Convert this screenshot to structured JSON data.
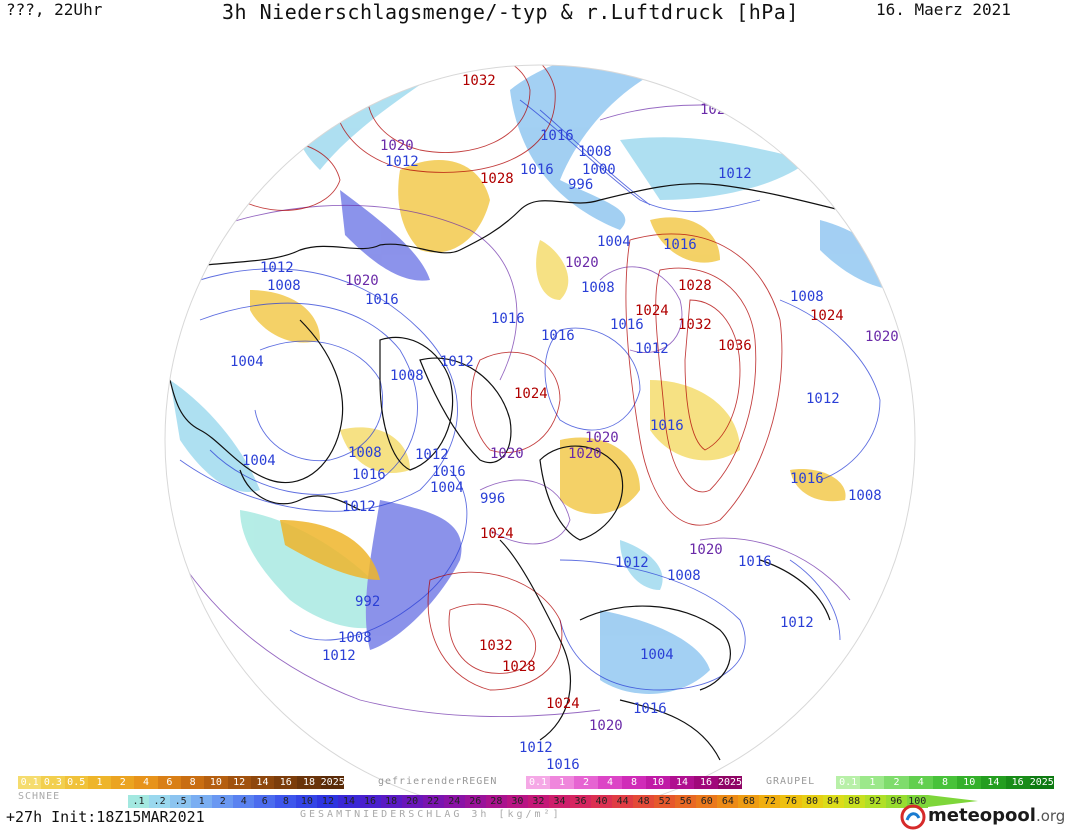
{
  "header": {
    "left": "???, 22Uhr",
    "title": "3h Niederschlagsmenge/-typ & r.Luftdruck [hPa]",
    "date": "16. Maerz 2021"
  },
  "map": {
    "colors": {
      "high": "#b00000",
      "low_blue": "#2a3fd6",
      "mid_purple": "#6a2aa8",
      "coast": "#111111",
      "rain_blue": "#6f78e6",
      "snow": "#f2c94c"
    },
    "pressure_labels": [
      {
        "text": "1032",
        "kind": "high"
      },
      {
        "text": "1020",
        "kind": "mid"
      },
      {
        "text": "1016",
        "kind": "low"
      },
      {
        "text": "1008",
        "kind": "low"
      },
      {
        "text": "1000",
        "kind": "low"
      },
      {
        "text": "996",
        "kind": "low"
      },
      {
        "text": "1012",
        "kind": "low"
      },
      {
        "text": "1016",
        "kind": "low"
      },
      {
        "text": "1020",
        "kind": "mid"
      },
      {
        "text": "1012",
        "kind": "low"
      },
      {
        "text": "1028",
        "kind": "high"
      },
      {
        "text": "1004",
        "kind": "low"
      },
      {
        "text": "1016",
        "kind": "low"
      },
      {
        "text": "1020",
        "kind": "mid"
      },
      {
        "text": "1012",
        "kind": "low"
      },
      {
        "text": "1008",
        "kind": "low"
      },
      {
        "text": "1020",
        "kind": "mid"
      },
      {
        "text": "1016",
        "kind": "low"
      },
      {
        "text": "1008",
        "kind": "low"
      },
      {
        "text": "1028",
        "kind": "high"
      },
      {
        "text": "1024",
        "kind": "high"
      },
      {
        "text": "1016",
        "kind": "low"
      },
      {
        "text": "1008",
        "kind": "low"
      },
      {
        "text": "1024",
        "kind": "high"
      },
      {
        "text": "1016",
        "kind": "low"
      },
      {
        "text": "1032",
        "kind": "high"
      },
      {
        "text": "1016",
        "kind": "low"
      },
      {
        "text": "1012",
        "kind": "low"
      },
      {
        "text": "1020",
        "kind": "mid"
      },
      {
        "text": "1036",
        "kind": "high"
      },
      {
        "text": "1004",
        "kind": "low"
      },
      {
        "text": "1012",
        "kind": "low"
      },
      {
        "text": "1008",
        "kind": "low"
      },
      {
        "text": "1024",
        "kind": "high"
      },
      {
        "text": "1012",
        "kind": "low"
      },
      {
        "text": "1020",
        "kind": "mid"
      },
      {
        "text": "1016",
        "kind": "low"
      },
      {
        "text": "1004",
        "kind": "low"
      },
      {
        "text": "1008",
        "kind": "low"
      },
      {
        "text": "1016",
        "kind": "low"
      },
      {
        "text": "1012",
        "kind": "low"
      },
      {
        "text": "1016",
        "kind": "low"
      },
      {
        "text": "1004",
        "kind": "low"
      },
      {
        "text": "996",
        "kind": "low"
      },
      {
        "text": "1020",
        "kind": "mid"
      },
      {
        "text": "1016",
        "kind": "low"
      },
      {
        "text": "1020",
        "kind": "mid"
      },
      {
        "text": "1008",
        "kind": "low"
      },
      {
        "text": "1012",
        "kind": "low"
      },
      {
        "text": "1024",
        "kind": "high"
      },
      {
        "text": "1020",
        "kind": "mid"
      },
      {
        "text": "1012",
        "kind": "low"
      },
      {
        "text": "1008",
        "kind": "low"
      },
      {
        "text": "1016",
        "kind": "low"
      },
      {
        "text": "992",
        "kind": "low"
      },
      {
        "text": "1008",
        "kind": "low"
      },
      {
        "text": "1012",
        "kind": "low"
      },
      {
        "text": "1032",
        "kind": "high"
      },
      {
        "text": "1028",
        "kind": "high"
      },
      {
        "text": "1004",
        "kind": "low"
      },
      {
        "text": "1024",
        "kind": "high"
      },
      {
        "text": "1016",
        "kind": "low"
      },
      {
        "text": "1020",
        "kind": "mid"
      },
      {
        "text": "1012",
        "kind": "low"
      },
      {
        "text": "1016",
        "kind": "low"
      },
      {
        "text": "1012",
        "kind": "low"
      }
    ]
  },
  "legend": {
    "snow_label": "SCHNEE",
    "snow_values": [
      "0.1",
      "0.3",
      "0.5",
      "1",
      "2",
      "4",
      "6",
      "8",
      "10",
      "12",
      "14",
      "16",
      "18",
      "2025+"
    ],
    "snow_colors": [
      "#f5dc6e",
      "#f2cf4e",
      "#f0c23a",
      "#eeb52a",
      "#eba421",
      "#e7931b",
      "#d97f16",
      "#c96e12",
      "#b55f10",
      "#a1520e",
      "#8e470d",
      "#7c3d0b",
      "#6a340a",
      "#5a2b08"
    ],
    "freezing_label": "gefrierenderREGEN",
    "freezing_values": [
      "0.1",
      "1",
      "2",
      "4",
      "8",
      "10",
      "14",
      "16",
      "2025+"
    ],
    "freezing_colors": [
      "#f5a8e6",
      "#ef86dc",
      "#e664d2",
      "#dc45c6",
      "#d02bb8",
      "#c01aa6",
      "#b01090",
      "#a0087a",
      "#8f0565"
    ],
    "graupel_label": "GRAUPEL",
    "graupel_values": [
      "0.1",
      "1",
      "2",
      "4",
      "8",
      "10",
      "14",
      "16",
      "2025+"
    ],
    "graupel_colors": [
      "#b8f0a8",
      "#9ce88a",
      "#7fdc6c",
      "#62cf4f",
      "#48c23a",
      "#34b02a",
      "#249e20",
      "#188c18",
      "#0e7a12"
    ],
    "total_values": [
      ".1",
      ".2",
      ".5",
      "1",
      "2",
      "4",
      "6",
      "8",
      "10",
      "12",
      "14",
      "16",
      "18",
      "20",
      "22",
      "24",
      "26",
      "28",
      "30",
      "32",
      "34",
      "36",
      "40",
      "44",
      "48",
      "52",
      "56",
      "60",
      "64",
      "68",
      "72",
      "76",
      "80",
      "84",
      "88",
      "92",
      "96",
      "100"
    ],
    "total_colors": [
      "#a3e8e0",
      "#9ad8ee",
      "#8cc4f0",
      "#7aaef2",
      "#6a98f2",
      "#5a82f0",
      "#4c6cee",
      "#3e56ec",
      "#3444e6",
      "#2e34e0",
      "#3a28d6",
      "#4a20ce",
      "#5a1ac4",
      "#6a16ba",
      "#7a14b0",
      "#8a12a6",
      "#9a129a",
      "#aa128e",
      "#b81484",
      "#c41878",
      "#ce1e6c",
      "#d62660",
      "#dc3052",
      "#e03c44",
      "#e44a38",
      "#e6582c",
      "#e86824",
      "#ea781c",
      "#ec8a16",
      "#ee9c12",
      "#f0ae10",
      "#eec010",
      "#e6cf14",
      "#dcdc1a",
      "#c8e020",
      "#b0e028",
      "#98dc30",
      "#7ed63a"
    ]
  },
  "footer": {
    "run_info": "+27h Init:18Z15MAR2021",
    "gesamt": "GESAMTNIEDERSCHLAG 3h [kg/m²]",
    "logo_main": "meteopool",
    "logo_org": ".org"
  }
}
